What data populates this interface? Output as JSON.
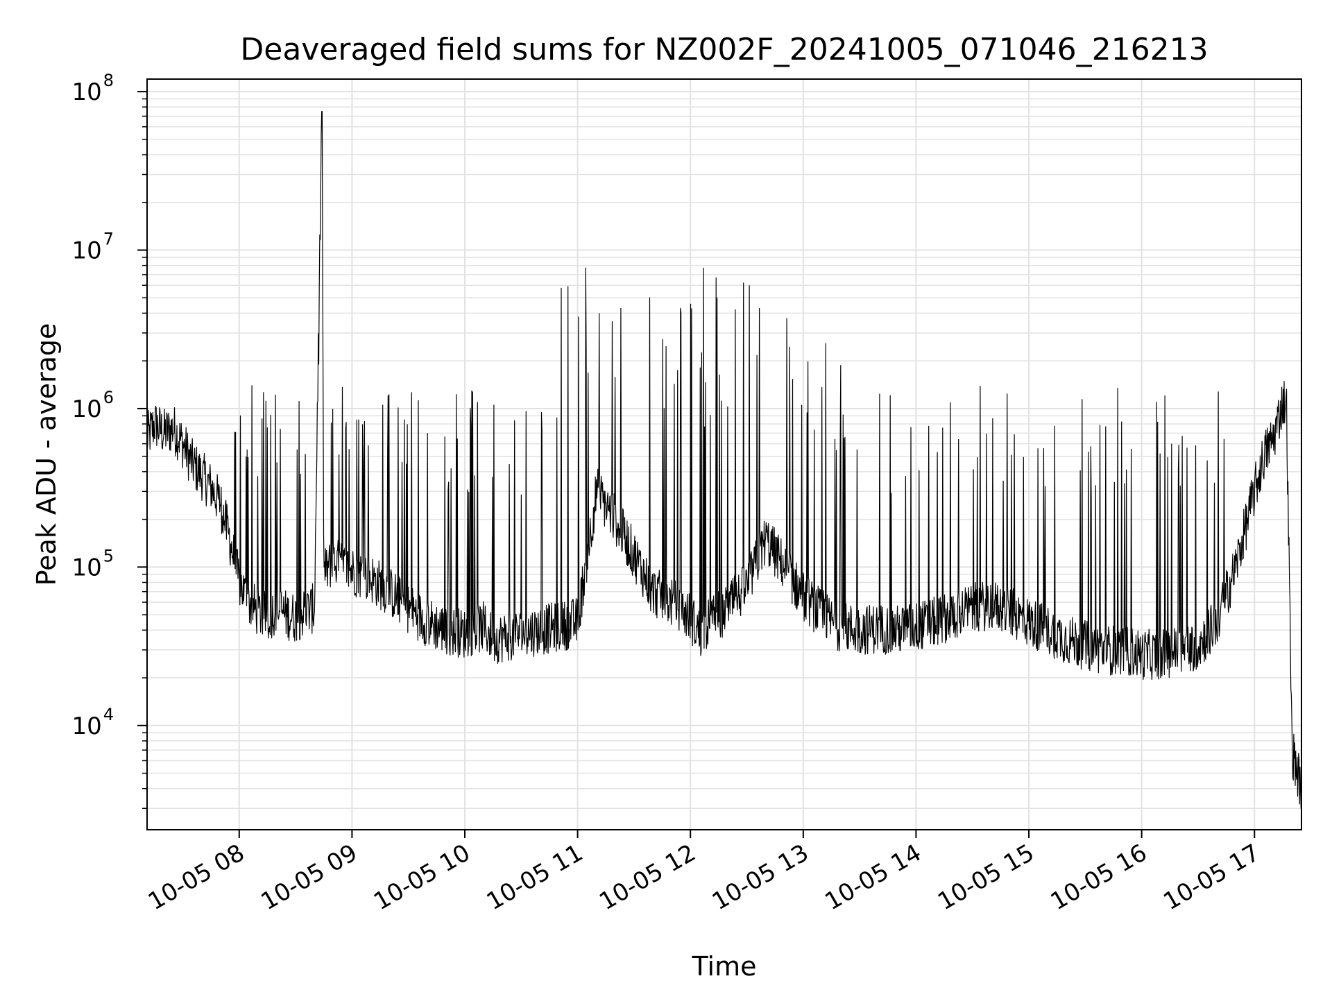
{
  "chart_data": {
    "type": "line",
    "title": "Deaveraged field sums for NZ002F_20241005_071046_216213",
    "xlabel": "Time",
    "ylabel": "Peak ADU - average",
    "yscale": "log",
    "ylim": [
      2200,
      120000000
    ],
    "xlim": [
      "2024-10-05 07:11",
      "2024-10-05 17:25"
    ],
    "grid": "on (major and minor)",
    "line_color": "#000000",
    "grid_color": "#e2e2e2",
    "x_ticks": [
      "10-05 08",
      "10-05 09",
      "10-05 10",
      "10-05 11",
      "10-05 12",
      "10-05 13",
      "10-05 14",
      "10-05 15",
      "10-05 16",
      "10-05 17"
    ],
    "y_ticks": [
      {
        "value": 10000,
        "base": "10",
        "exp": "4"
      },
      {
        "value": 100000,
        "base": "10",
        "exp": "5"
      },
      {
        "value": 1000000,
        "base": "10",
        "exp": "6"
      },
      {
        "value": 10000000,
        "base": "10",
        "exp": "7"
      },
      {
        "value": 100000000,
        "base": "10",
        "exp": "8"
      }
    ],
    "x_start": "2024-10-05 07:11",
    "series": [
      {
        "x": [
          "07:11",
          "07:15",
          "07:20",
          "07:25",
          "07:30",
          "07:35",
          "07:40",
          "07:45",
          "07:50",
          "07:55",
          "08:00",
          "08:05",
          "08:10",
          "08:15",
          "08:20",
          "08:25",
          "08:30",
          "08:35",
          "08:40",
          "08:44",
          "08:45",
          "08:50",
          "08:55",
          "09:00",
          "09:10",
          "09:20",
          "09:30",
          "09:40",
          "09:50",
          "10:00",
          "10:10",
          "10:15",
          "10:20",
          "10:30",
          "10:40",
          "10:50",
          "11:00",
          "11:10",
          "11:20",
          "11:30",
          "11:40",
          "11:50",
          "12:00",
          "12:05",
          "12:10",
          "12:20",
          "12:30",
          "12:40",
          "12:50",
          "13:00",
          "13:10",
          "13:15",
          "13:20",
          "13:30",
          "13:40",
          "13:50",
          "14:00",
          "14:10",
          "14:20",
          "14:30",
          "14:40",
          "14:50",
          "15:00",
          "15:10",
          "15:20",
          "15:30",
          "15:40",
          "15:50",
          "16:00",
          "16:10",
          "16:20",
          "16:30",
          "16:40",
          "16:50",
          "17:00",
          "17:05",
          "17:10",
          "17:12",
          "17:15",
          "17:17",
          "17:20",
          "17:25"
        ],
        "y": [
          650000,
          800000,
          700000,
          750000,
          600000,
          450000,
          380000,
          320000,
          250000,
          150000,
          80000,
          60000,
          52000,
          48000,
          55000,
          50000,
          48000,
          52000,
          55000,
          75000000,
          90000,
          110000,
          100000,
          95000,
          85000,
          70000,
          55000,
          45000,
          40000,
          38000,
          42000,
          35000,
          36000,
          38000,
          40000,
          42000,
          45000,
          300000,
          200000,
          120000,
          70000,
          60000,
          48000,
          38000,
          45000,
          55000,
          75000,
          150000,
          100000,
          65000,
          50000,
          45000,
          42000,
          40000,
          41000,
          40000,
          42000,
          45000,
          50000,
          55000,
          58000,
          52000,
          45000,
          40000,
          35000,
          32000,
          30000,
          30000,
          28000,
          28000,
          30000,
          32000,
          45000,
          100000,
          300000,
          500000,
          650000,
          800000,
          1100000,
          1100000,
          7000,
          4000
        ]
      }
    ]
  }
}
